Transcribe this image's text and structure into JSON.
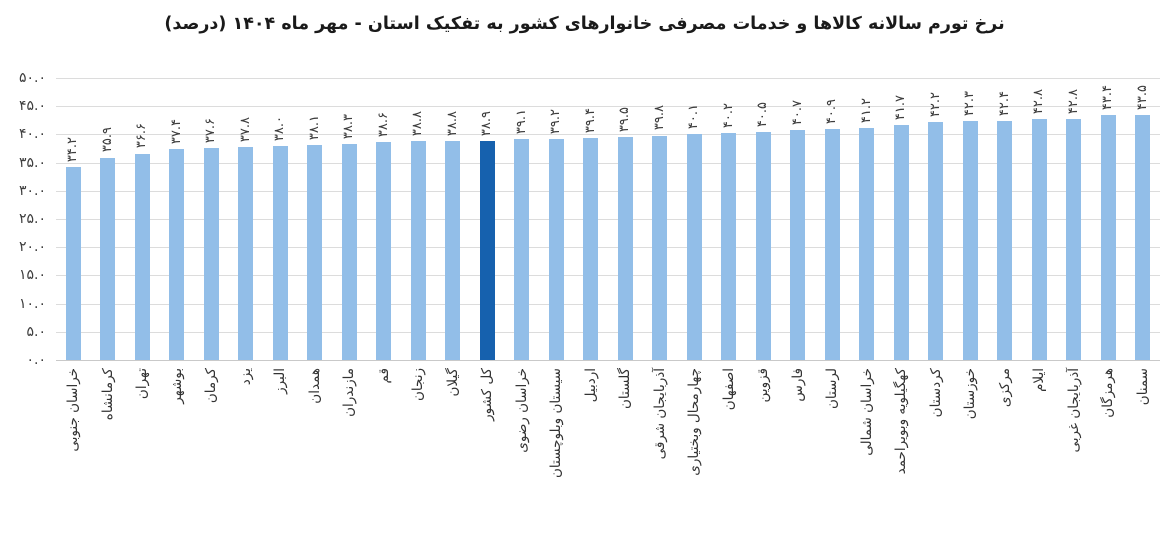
{
  "title": "نرخ تورم سالانه کالاها و خدمات مصرفی خانوارهای کشور به تفکیک استان - مهر ماه ۱۴۰۴ (درصد)",
  "chart_data": {
    "type": "bar",
    "title": "نرخ تورم سالانه کالاها و خدمات مصرفی خانوارهای کشور به تفکیک استان - مهر ماه ۱۴۰۴ (درصد)",
    "xlabel": "",
    "ylabel": "",
    "ylim": [
      0,
      50
    ],
    "ytick_step": 5,
    "ytick_labels_top_down": [
      "۵۰.۰",
      "۴۵.۰",
      "۴۰.۰",
      "۳۵.۰",
      "۳۰.۰",
      "۲۵.۰",
      "۲۰.۰",
      "۱۵.۰",
      "۱۰.۰",
      "۵.۰",
      "۰.۰"
    ],
    "grid": true,
    "legend": false,
    "categories": [
      "خراسان جنوبی",
      "کرمانشاه",
      "تهران",
      "بوشهر",
      "کرمان",
      "یزد",
      "البرز",
      "همدان",
      "مازندران",
      "قم",
      "زنجان",
      "گیلان",
      "کل کشور",
      "خراسان رضوی",
      "سیستان وبلوچستان",
      "اردبیل",
      "گلستان",
      "آذربایجان شرقی",
      "چهارمحال وبختیاری",
      "اصفهان",
      "قزوین",
      "فارس",
      "لرستان",
      "خراسان شمالی",
      "کهگیلویه وبویراحمد",
      "کردستان",
      "خوزستان",
      "مرکزی",
      "ایلام",
      "آذربایجان غربی",
      "هرمزگان",
      "سمنان"
    ],
    "values": [
      34.2,
      35.9,
      36.6,
      37.4,
      37.6,
      37.8,
      38.0,
      38.1,
      38.3,
      38.6,
      38.8,
      38.8,
      38.9,
      39.1,
      39.2,
      39.4,
      39.5,
      39.8,
      40.1,
      40.2,
      40.5,
      40.7,
      40.9,
      41.2,
      41.7,
      42.2,
      42.3,
      42.4,
      42.8,
      42.8,
      43.4,
      43.5
    ],
    "value_labels": [
      "۳۴.۲",
      "۳۵.۹",
      "۳۶.۶",
      "۳۷.۴",
      "۳۷.۶",
      "۳۷.۸",
      "۳۸.۰",
      "۳۸.۱",
      "۳۸.۳",
      "۳۸.۶",
      "۳۸.۸",
      "۳۸.۸",
      "۳۸.۹",
      "۳۹.۱",
      "۳۹.۲",
      "۳۹.۴",
      "۳۹.۵",
      "۳۹.۸",
      "۴۰.۱",
      "۴۰.۲",
      "۴۰.۵",
      "۴۰.۷",
      "۴۰.۹",
      "۴۱.۲",
      "۴۱.۷",
      "۴۲.۲",
      "۴۲.۳",
      "۴۲.۴",
      "۴۲.۸",
      "۴۲.۸",
      "۴۳.۴",
      "۴۳.۵"
    ],
    "highlight_category": "کل کشور",
    "highlight_index": 12,
    "colors": {
      "bar": "#92BEE8",
      "highlight": "#1661AE",
      "gridline": "#DCDCDC",
      "axis_line": "#C9C9C9",
      "label_text": "#3D3D3D",
      "title_text": "#1A1A1A",
      "background": "#FFFFFF"
    }
  }
}
